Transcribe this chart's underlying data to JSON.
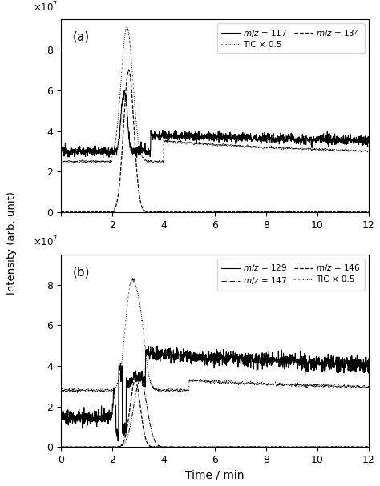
{
  "title_a": "(a)",
  "title_b": "(b)",
  "ylabel": "Intensity (arb. unit)",
  "xlabel": "Time / min",
  "xlim": [
    0,
    12
  ],
  "ylim_a": [
    0,
    95000000.0
  ],
  "ylim_b": [
    0,
    95000000.0
  ],
  "yticks": [
    0,
    20000000.0,
    40000000.0,
    60000000.0,
    80000000.0
  ],
  "xticks": [
    0,
    2,
    4,
    6,
    8,
    10,
    12
  ]
}
